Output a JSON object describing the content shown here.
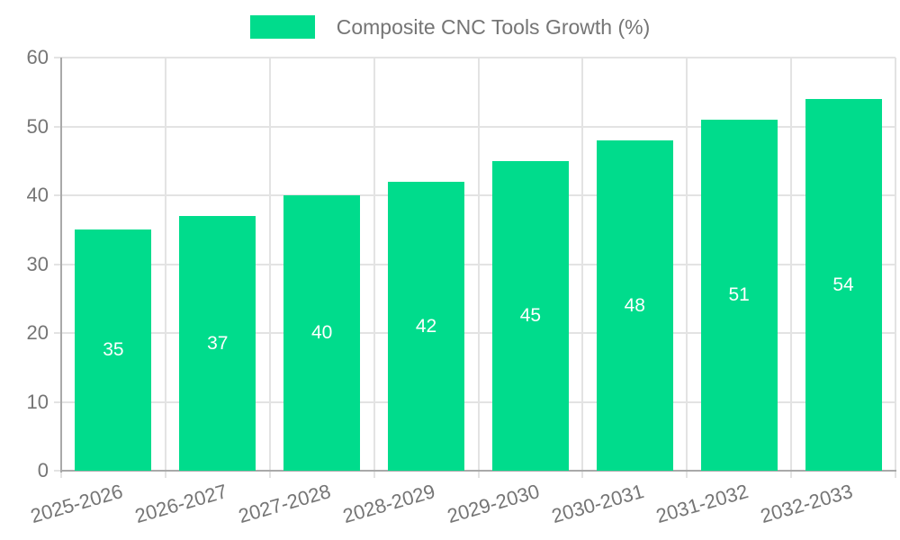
{
  "chart_data": {
    "type": "bar",
    "legend": "Composite CNC Tools Growth (%)",
    "legend_position": "top-center",
    "categories": [
      "2025-2026",
      "2026-2027",
      "2027-2028",
      "2028-2029",
      "2029-2030",
      "2030-2031",
      "2031-2032",
      "2032-2033"
    ],
    "values": [
      35,
      37,
      40,
      42,
      45,
      48,
      51,
      54
    ],
    "value_labels_inside_bars": true,
    "xlabel": "",
    "ylabel": "",
    "ylim": [
      0,
      60
    ],
    "yticks": [
      0,
      10,
      20,
      30,
      40,
      50,
      60
    ],
    "grid": true,
    "colors": {
      "bar": "#00DC8C",
      "bar_value_text": "#FFFFFF",
      "tick_text": "#757575",
      "legend_text": "#757575",
      "gridline": "#E3E3E3",
      "axis_line": "#A9A9A9",
      "background": "#FFFFFF"
    }
  }
}
